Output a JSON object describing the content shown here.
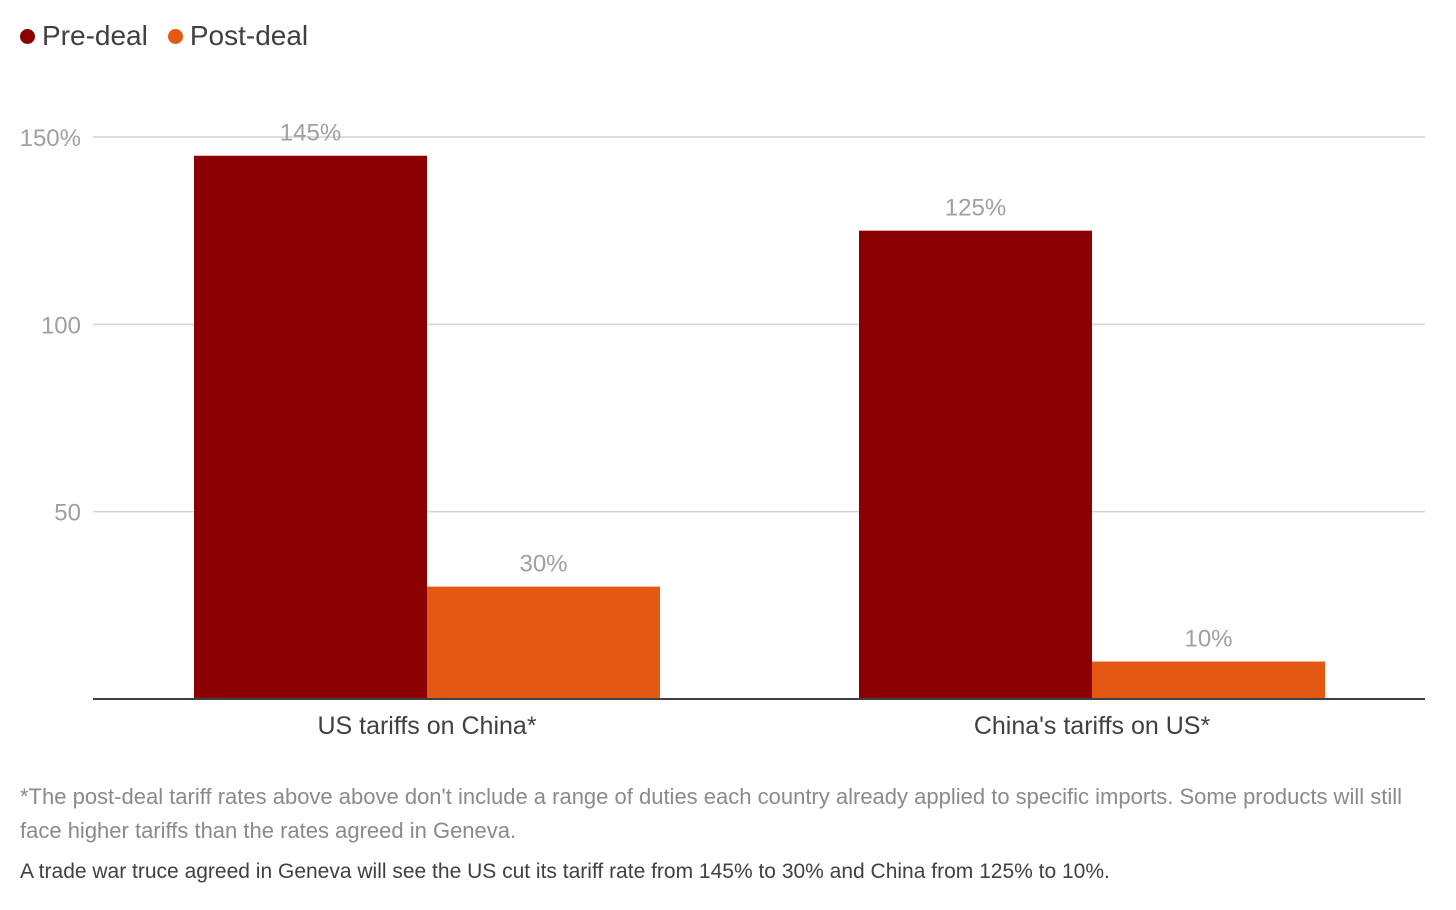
{
  "colors": {
    "pre_deal": "#8b0000",
    "post_deal": "#e35812",
    "grid": "#d2d2d2",
    "axis": "#404040",
    "tick_text": "#a0a0a0",
    "category_text": "#404040"
  },
  "chart_data": {
    "type": "bar",
    "categories": [
      "US tariffs on China*",
      "China's tariffs on US*"
    ],
    "series": [
      {
        "name": "Pre-deal",
        "values": [
          145,
          125
        ],
        "labels": [
          "145%",
          "125%"
        ]
      },
      {
        "name": "Post-deal",
        "values": [
          30,
          10
        ],
        "labels": [
          "30%",
          "10%"
        ]
      }
    ],
    "ylim": [
      0,
      150
    ],
    "yticks": [
      {
        "value": 50,
        "label": "50"
      },
      {
        "value": 100,
        "label": "100"
      },
      {
        "value": 150,
        "label": "150%"
      }
    ],
    "grid": true,
    "legend_position": "top-left"
  },
  "legend": [
    {
      "label": "Pre-deal",
      "color": "#8b0000"
    },
    {
      "label": "Post-deal",
      "color": "#e35812"
    }
  ],
  "footnote": "*The post-deal tariff rates above above don't include a range of duties each country already applied to specific imports. Some products will still face higher tariffs than the rates agreed in Geneva.",
  "caption": "A trade war truce agreed in Geneva will see the US cut its tariff rate from 145% to 30% and China from 125% to 10%."
}
